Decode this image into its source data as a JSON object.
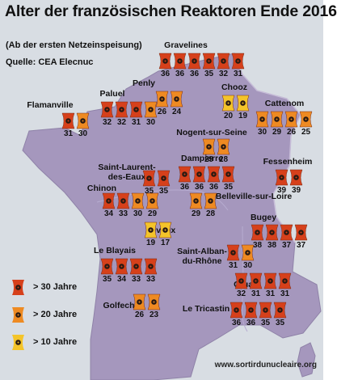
{
  "title": "Alter der französischen Reaktoren Ende 2016",
  "subtitle": "(Ab der ersten Netzeinspeisung)",
  "source": "Quelle: CEA Elecnuc",
  "footer": "www.sortirdunucleaire.org",
  "colors": {
    "over30": "#d6401b",
    "over20": "#ee8a22",
    "over10": "#f4c42a",
    "land": "#a597bd",
    "sea": "#d8dde3",
    "trefoil": "#2a1a12"
  },
  "legend": [
    {
      "label": "> 30 Jahre",
      "category": "over30"
    },
    {
      "label": "> 20 Jahre",
      "category": "over20"
    },
    {
      "label": "> 10 Jahre",
      "category": "over10"
    }
  ],
  "sites": [
    {
      "name": "Gravelines",
      "ages": [
        36,
        36,
        36,
        35,
        32,
        31
      ]
    },
    {
      "name": "Penly",
      "ages": [
        26,
        24
      ]
    },
    {
      "name": "Paluel",
      "ages": [
        32,
        32,
        31,
        30
      ]
    },
    {
      "name": "Chooz",
      "ages": [
        20,
        19
      ]
    },
    {
      "name": "Flamanville",
      "ages": [
        31,
        30
      ]
    },
    {
      "name": "Cattenom",
      "ages": [
        30,
        29,
        26,
        25
      ]
    },
    {
      "name": "Nogent-sur-Seine",
      "ages": [
        29,
        28
      ]
    },
    {
      "name": "Fessenheim",
      "ages": [
        39,
        39
      ]
    },
    {
      "name": "Dampierre",
      "ages": [
        36,
        36,
        36,
        35
      ]
    },
    {
      "name": "Saint-Laurent-des-Eaux",
      "label_lines": [
        "Saint-Laurent-",
        "des-Eaux"
      ],
      "ages": [
        35,
        35
      ]
    },
    {
      "name": "Chinon",
      "ages": [
        34,
        33,
        30,
        29
      ]
    },
    {
      "name": "Belleville-sur-Loire",
      "ages": [
        29,
        28
      ]
    },
    {
      "name": "Civaux",
      "ages": [
        19,
        17
      ]
    },
    {
      "name": "Bugey",
      "ages": [
        38,
        38,
        37,
        37
      ]
    },
    {
      "name": "Le Blayais",
      "ages": [
        35,
        34,
        33,
        33
      ]
    },
    {
      "name": "Saint-Alban-du-Rhône",
      "label_lines": [
        "Saint-Alban-",
        "du-Rhône"
      ],
      "ages": [
        31,
        30
      ]
    },
    {
      "name": "Cruas",
      "ages": [
        32,
        31,
        31,
        31
      ]
    },
    {
      "name": "Golfech",
      "ages": [
        26,
        23
      ]
    },
    {
      "name": "Le Tricastin",
      "ages": [
        36,
        36,
        35,
        35
      ]
    }
  ]
}
